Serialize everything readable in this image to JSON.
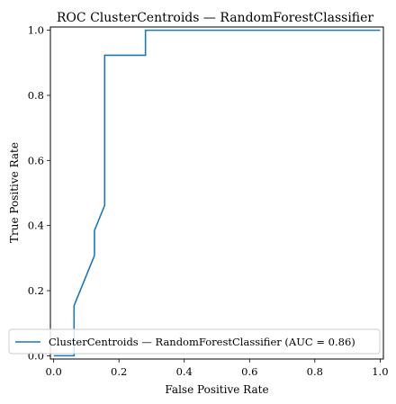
{
  "chart_data": {
    "type": "line",
    "title": "ROC ClusterCentroids — RandomForestClassifier",
    "xlabel": "False Positive Rate",
    "ylabel": "True Positive Rate",
    "xlim": [
      -0.01,
      1.01
    ],
    "ylim": [
      -0.01,
      1.01
    ],
    "xticks": [
      0.0,
      0.2,
      0.4,
      0.6,
      0.8,
      1.0
    ],
    "yticks": [
      0.0,
      0.2,
      0.4,
      0.6,
      0.8,
      1.0
    ],
    "xtick_labels": [
      "0.0",
      "0.2",
      "0.4",
      "0.6",
      "0.8",
      "1.0"
    ],
    "ytick_labels": [
      "0.0",
      "0.2",
      "0.4",
      "0.6",
      "0.8",
      "1.0"
    ],
    "grid": false,
    "legend_position": "lower-right",
    "series": [
      {
        "name": "ClusterCentroids — RandomForestClassifier (AUC = 0.86)",
        "color": "#1f77b4",
        "x": [
          0.0,
          0.0,
          0.0625,
          0.0625,
          0.125,
          0.125,
          0.15625,
          0.15625,
          0.28125,
          0.28125,
          1.0
        ],
        "y": [
          0.0,
          0.0,
          0.0,
          0.154,
          0.308,
          0.385,
          0.462,
          0.923,
          0.923,
          1.0,
          1.0
        ]
      }
    ]
  }
}
